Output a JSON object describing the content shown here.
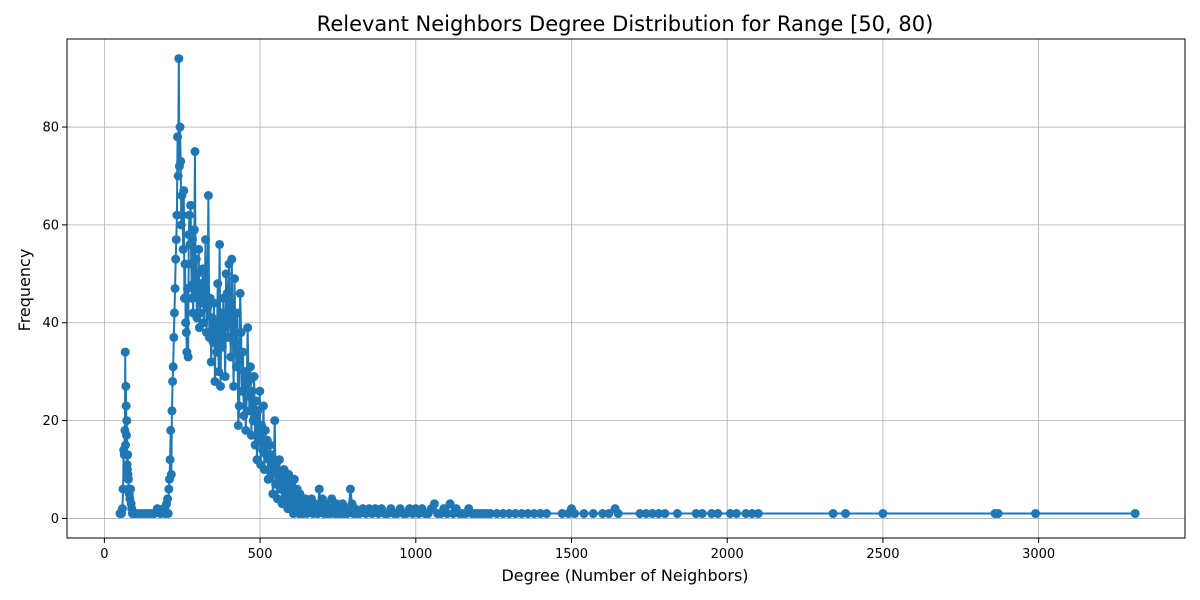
{
  "chart_data": {
    "type": "line",
    "title": "Relevant Neighbors Degree Distribution for Range [50, 80)",
    "xlabel": "Degree (Number of Neighbors)",
    "ylabel": "Frequency",
    "xlim": [
      -120,
      3470
    ],
    "ylim": [
      -4,
      98
    ],
    "xticks": [
      0,
      500,
      1000,
      1500,
      2000,
      2500,
      3000
    ],
    "yticks": [
      0,
      20,
      40,
      60,
      80
    ],
    "grid": true,
    "marker": "circle",
    "series": [
      {
        "color": "#1f77b4",
        "points": [
          [
            50,
            1
          ],
          [
            55,
            1
          ],
          [
            58,
            2
          ],
          [
            60,
            6
          ],
          [
            62,
            14
          ],
          [
            64,
            13
          ],
          [
            66,
            18
          ],
          [
            67,
            34
          ],
          [
            68,
            15
          ],
          [
            69,
            27
          ],
          [
            70,
            23
          ],
          [
            71,
            17
          ],
          [
            72,
            20
          ],
          [
            73,
            11
          ],
          [
            74,
            10
          ],
          [
            75,
            13
          ],
          [
            76,
            9
          ],
          [
            77,
            8
          ],
          [
            78,
            6
          ],
          [
            80,
            5
          ],
          [
            82,
            4
          ],
          [
            84,
            6
          ],
          [
            86,
            3
          ],
          [
            88,
            2
          ],
          [
            90,
            1
          ],
          [
            95,
            1
          ],
          [
            100,
            1
          ],
          [
            110,
            1
          ],
          [
            120,
            1
          ],
          [
            130,
            1
          ],
          [
            140,
            1
          ],
          [
            150,
            1
          ],
          [
            160,
            1
          ],
          [
            170,
            2
          ],
          [
            180,
            1
          ],
          [
            190,
            2
          ],
          [
            195,
            1
          ],
          [
            200,
            3
          ],
          [
            203,
            4
          ],
          [
            205,
            1
          ],
          [
            207,
            6
          ],
          [
            209,
            8
          ],
          [
            211,
            12
          ],
          [
            213,
            18
          ],
          [
            215,
            9
          ],
          [
            217,
            22
          ],
          [
            219,
            28
          ],
          [
            221,
            31
          ],
          [
            223,
            37
          ],
          [
            225,
            42
          ],
          [
            227,
            47
          ],
          [
            229,
            53
          ],
          [
            231,
            57
          ],
          [
            233,
            62
          ],
          [
            235,
            78
          ],
          [
            237,
            70
          ],
          [
            239,
            94
          ],
          [
            241,
            72
          ],
          [
            243,
            80
          ],
          [
            245,
            73
          ],
          [
            247,
            60
          ],
          [
            249,
            66
          ],
          [
            251,
            62
          ],
          [
            253,
            55
          ],
          [
            255,
            67
          ],
          [
            257,
            45
          ],
          [
            259,
            52
          ],
          [
            261,
            40
          ],
          [
            263,
            38
          ],
          [
            265,
            34
          ],
          [
            267,
            47
          ],
          [
            269,
            33
          ],
          [
            271,
            58
          ],
          [
            273,
            62
          ],
          [
            275,
            56
          ],
          [
            277,
            64
          ],
          [
            279,
            52
          ],
          [
            281,
            45
          ],
          [
            283,
            57
          ],
          [
            285,
            42
          ],
          [
            287,
            48
          ],
          [
            289,
            59
          ],
          [
            291,
            75
          ],
          [
            293,
            46
          ],
          [
            295,
            53
          ],
          [
            297,
            41
          ],
          [
            299,
            50
          ],
          [
            301,
            45
          ],
          [
            303,
            55
          ],
          [
            305,
            39
          ],
          [
            307,
            42
          ],
          [
            310,
            48
          ],
          [
            313,
            44
          ],
          [
            316,
            51
          ],
          [
            319,
            40
          ],
          [
            322,
            46
          ],
          [
            325,
            57
          ],
          [
            328,
            38
          ],
          [
            331,
            43
          ],
          [
            334,
            66
          ],
          [
            337,
            37
          ],
          [
            340,
            45
          ],
          [
            343,
            32
          ],
          [
            346,
            41
          ],
          [
            349,
            36
          ],
          [
            352,
            44
          ],
          [
            355,
            28
          ],
          [
            358,
            40
          ],
          [
            361,
            34
          ],
          [
            364,
            48
          ],
          [
            367,
            30
          ],
          [
            370,
            56
          ],
          [
            373,
            27
          ],
          [
            376,
            42
          ],
          [
            379,
            35
          ],
          [
            382,
            45
          ],
          [
            385,
            39
          ],
          [
            388,
            29
          ],
          [
            391,
            50
          ],
          [
            394,
            46
          ],
          [
            397,
            37
          ],
          [
            400,
            52
          ],
          [
            403,
            43
          ],
          [
            406,
            33
          ],
          [
            409,
            53
          ],
          [
            412,
            40
          ],
          [
            415,
            27
          ],
          [
            418,
            49
          ],
          [
            421,
            36
          ],
          [
            424,
            31
          ],
          [
            427,
            42
          ],
          [
            430,
            19
          ],
          [
            433,
            23
          ],
          [
            436,
            46
          ],
          [
            439,
            38
          ],
          [
            442,
            26
          ],
          [
            445,
            34
          ],
          [
            448,
            21
          ],
          [
            451,
            30
          ],
          [
            454,
            18
          ],
          [
            457,
            25
          ],
          [
            460,
            39
          ],
          [
            463,
            28
          ],
          [
            466,
            22
          ],
          [
            469,
            31
          ],
          [
            472,
            17
          ],
          [
            475,
            26
          ],
          [
            478,
            20
          ],
          [
            481,
            29
          ],
          [
            484,
            15
          ],
          [
            487,
            24
          ],
          [
            490,
            12
          ],
          [
            493,
            22
          ],
          [
            496,
            16
          ],
          [
            499,
            26
          ],
          [
            502,
            11
          ],
          [
            505,
            19
          ],
          [
            508,
            14
          ],
          [
            511,
            23
          ],
          [
            514,
            10
          ],
          [
            517,
            18
          ],
          [
            520,
            13
          ],
          [
            523,
            16
          ],
          [
            526,
            8
          ],
          [
            529,
            12
          ],
          [
            532,
            15
          ],
          [
            535,
            9
          ],
          [
            538,
            13
          ],
          [
            541,
            5
          ],
          [
            544,
            11
          ],
          [
            547,
            20
          ],
          [
            550,
            7
          ],
          [
            553,
            10
          ],
          [
            556,
            4
          ],
          [
            559,
            9
          ],
          [
            562,
            12
          ],
          [
            565,
            6
          ],
          [
            568,
            8
          ],
          [
            571,
            3
          ],
          [
            574,
            7
          ],
          [
            577,
            10
          ],
          [
            580,
            4
          ],
          [
            583,
            8
          ],
          [
            586,
            5
          ],
          [
            589,
            2
          ],
          [
            592,
            9
          ],
          [
            595,
            6
          ],
          [
            598,
            3
          ],
          [
            601,
            7
          ],
          [
            604,
            4
          ],
          [
            607,
            1
          ],
          [
            610,
            8
          ],
          [
            613,
            5
          ],
          [
            616,
            2
          ],
          [
            619,
            6
          ],
          [
            622,
            3
          ],
          [
            625,
            1
          ],
          [
            628,
            5
          ],
          [
            631,
            2
          ],
          [
            634,
            4
          ],
          [
            637,
            1
          ],
          [
            640,
            3
          ],
          [
            643,
            2
          ],
          [
            646,
            4
          ],
          [
            650,
            1
          ],
          [
            655,
            3
          ],
          [
            660,
            2
          ],
          [
            665,
            4
          ],
          [
            670,
            1
          ],
          [
            675,
            3
          ],
          [
            680,
            2
          ],
          [
            685,
            1
          ],
          [
            690,
            6
          ],
          [
            695,
            2
          ],
          [
            700,
            4
          ],
          [
            705,
            1
          ],
          [
            710,
            3
          ],
          [
            715,
            1
          ],
          [
            720,
            2
          ],
          [
            725,
            1
          ],
          [
            730,
            4
          ],
          [
            735,
            2
          ],
          [
            740,
            1
          ],
          [
            745,
            3
          ],
          [
            750,
            1
          ],
          [
            755,
            2
          ],
          [
            760,
            1
          ],
          [
            765,
            3
          ],
          [
            770,
            1
          ],
          [
            775,
            2
          ],
          [
            780,
            1
          ],
          [
            785,
            2
          ],
          [
            790,
            6
          ],
          [
            795,
            3
          ],
          [
            800,
            1
          ],
          [
            805,
            2
          ],
          [
            810,
            1
          ],
          [
            820,
            1
          ],
          [
            830,
            2
          ],
          [
            840,
            1
          ],
          [
            850,
            2
          ],
          [
            860,
            1
          ],
          [
            870,
            2
          ],
          [
            880,
            1
          ],
          [
            890,
            2
          ],
          [
            900,
            1
          ],
          [
            910,
            1
          ],
          [
            920,
            2
          ],
          [
            930,
            1
          ],
          [
            940,
            1
          ],
          [
            950,
            2
          ],
          [
            960,
            1
          ],
          [
            970,
            1
          ],
          [
            980,
            2
          ],
          [
            990,
            1
          ],
          [
            1000,
            2
          ],
          [
            1010,
            1
          ],
          [
            1020,
            2
          ],
          [
            1030,
            1
          ],
          [
            1040,
            1
          ],
          [
            1050,
            2
          ],
          [
            1060,
            3
          ],
          [
            1070,
            1
          ],
          [
            1080,
            1
          ],
          [
            1090,
            2
          ],
          [
            1100,
            1
          ],
          [
            1110,
            3
          ],
          [
            1120,
            1
          ],
          [
            1130,
            2
          ],
          [
            1140,
            1
          ],
          [
            1150,
            1
          ],
          [
            1160,
            1
          ],
          [
            1170,
            2
          ],
          [
            1180,
            1
          ],
          [
            1190,
            1
          ],
          [
            1200,
            1
          ],
          [
            1210,
            1
          ],
          [
            1220,
            1
          ],
          [
            1230,
            1
          ],
          [
            1240,
            1
          ],
          [
            1260,
            1
          ],
          [
            1280,
            1
          ],
          [
            1300,
            1
          ],
          [
            1320,
            1
          ],
          [
            1340,
            1
          ],
          [
            1360,
            1
          ],
          [
            1380,
            1
          ],
          [
            1400,
            1
          ],
          [
            1420,
            1
          ],
          [
            1470,
            1
          ],
          [
            1490,
            1
          ],
          [
            1500,
            2
          ],
          [
            1510,
            1
          ],
          [
            1540,
            1
          ],
          [
            1570,
            1
          ],
          [
            1600,
            1
          ],
          [
            1620,
            1
          ],
          [
            1640,
            2
          ],
          [
            1650,
            1
          ],
          [
            1720,
            1
          ],
          [
            1740,
            1
          ],
          [
            1760,
            1
          ],
          [
            1780,
            1
          ],
          [
            1800,
            1
          ],
          [
            1840,
            1
          ],
          [
            1900,
            1
          ],
          [
            1920,
            1
          ],
          [
            1950,
            1
          ],
          [
            1970,
            1
          ],
          [
            2010,
            1
          ],
          [
            2030,
            1
          ],
          [
            2060,
            1
          ],
          [
            2080,
            1
          ],
          [
            2100,
            1
          ],
          [
            2340,
            1
          ],
          [
            2380,
            1
          ],
          [
            2500,
            1
          ],
          [
            2860,
            1
          ],
          [
            2870,
            1
          ],
          [
            2990,
            1
          ],
          [
            3310,
            1
          ]
        ]
      }
    ]
  }
}
